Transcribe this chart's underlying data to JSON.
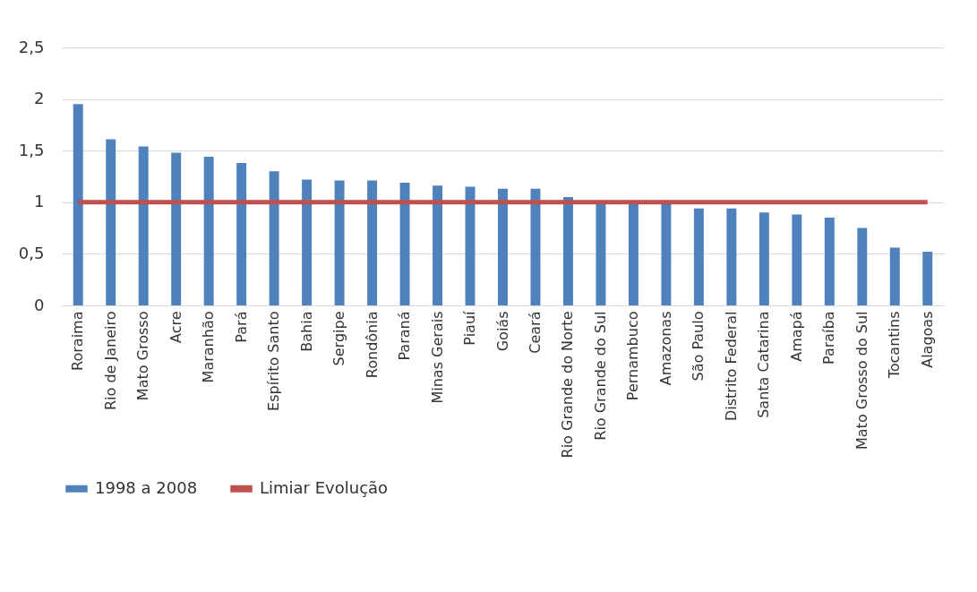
{
  "chart_data": {
    "type": "bar",
    "categories": [
      "Roraima",
      "Rio de Janeiro",
      "Mato Grosso",
      "Acre",
      "Maranhão",
      "Pará",
      "Espírito Santo",
      "Bahia",
      "Sergipe",
      "Rondônia",
      "Paraná",
      "Minas Gerais",
      "Piauí",
      "Goiás",
      "Ceará",
      "Rio Grande do Norte",
      "Rio Grande do Sul",
      "Pernambuco",
      "Amazonas",
      "São Paulo",
      "Distrito Federal",
      "Santa Catarina",
      "Amapá",
      "Paraíba",
      "Mato Grosso do Sul",
      "Tocantins",
      "Alagoas"
    ],
    "series": [
      {
        "name": "1998 a 2008",
        "color": "#4f81bd",
        "values": [
          1.95,
          1.61,
          1.54,
          1.48,
          1.44,
          1.38,
          1.3,
          1.22,
          1.21,
          1.21,
          1.19,
          1.16,
          1.15,
          1.13,
          1.13,
          1.05,
          0.99,
          0.98,
          0.98,
          0.94,
          0.94,
          0.9,
          0.88,
          0.85,
          0.75,
          0.56,
          0.52
        ]
      },
      {
        "name": "Limiar Evolução",
        "type": "line",
        "color": "#c0504d",
        "values": [
          1,
          1,
          1,
          1,
          1,
          1,
          1,
          1,
          1,
          1,
          1,
          1,
          1,
          1,
          1,
          1,
          1,
          1,
          1,
          1,
          1,
          1,
          1,
          1,
          1,
          1,
          1
        ]
      }
    ],
    "ylim": [
      0,
      2.5
    ],
    "yticks": [
      0,
      {
        "value": 0.5,
        "label": "0,5"
      },
      1,
      {
        "value": 1.5,
        "label": "1,5"
      },
      2,
      {
        "value": 2.5,
        "label": "2,5"
      }
    ],
    "grid": "y",
    "legend": "bottom"
  }
}
